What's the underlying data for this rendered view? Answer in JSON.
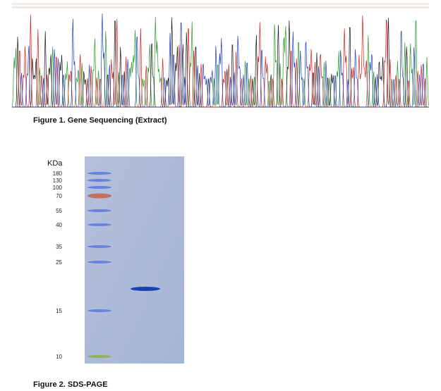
{
  "figure1": {
    "caption": "Figure 1. Gene Sequencing (Extract)"
  },
  "figure2": {
    "caption": "Figure 2. SDS-PAGE",
    "unit": "KDa",
    "markers": [
      "180",
      "130",
      "100",
      "70",
      "55",
      "40",
      "35",
      "25",
      "15",
      "10"
    ]
  }
}
